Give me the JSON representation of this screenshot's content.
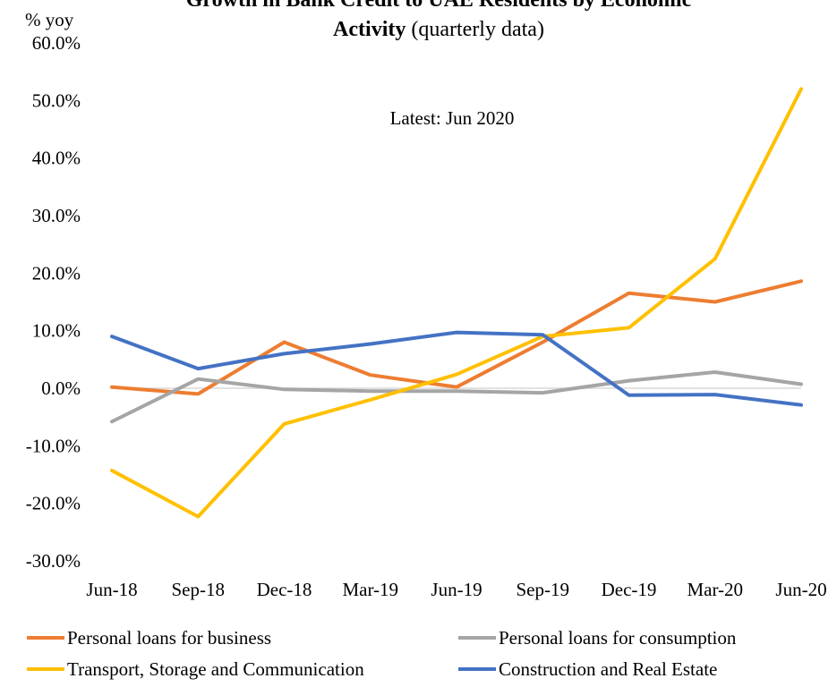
{
  "chart_data": {
    "type": "line",
    "title_line1": "Growth in Bank Credit to UAE Residents by Economic",
    "title_line2_bold": "Activity",
    "title_line2_rest": " (quarterly data)",
    "ylabel": "% yoy",
    "annotation": "Latest: Jun 2020",
    "categories": [
      "Jun-18",
      "Sep-18",
      "Dec-18",
      "Mar-19",
      "Jun-19",
      "Sep-19",
      "Dec-19",
      "Mar-20",
      "Jun-20"
    ],
    "ylim": [
      -30,
      60
    ],
    "yticks": [
      -30,
      -20,
      -10,
      0,
      10,
      20,
      30,
      40,
      50,
      60
    ],
    "ytick_labels": [
      "-30.0%",
      "-20.0%",
      "-10.0%",
      "0.0%",
      "10.0%",
      "20.0%",
      "30.0%",
      "40.0%",
      "50.0%",
      "60.0%"
    ],
    "grid": false,
    "legend_position": "bottom",
    "series": [
      {
        "name": "Personal loans for business",
        "color": "#ED7D31",
        "values": [
          0.2,
          -1.0,
          8.0,
          2.3,
          0.2,
          8.0,
          16.5,
          15.0,
          18.6
        ]
      },
      {
        "name": "Personal loans for consumption",
        "color": "#A5A5A5",
        "values": [
          -5.8,
          1.6,
          -0.2,
          -0.5,
          -0.5,
          -0.8,
          1.3,
          2.8,
          0.7
        ]
      },
      {
        "name": "Transport, Storage and Communication",
        "color": "#FFC000",
        "values": [
          -14.3,
          -22.3,
          -6.2,
          -2.0,
          2.4,
          9.0,
          10.5,
          22.5,
          52.0
        ]
      },
      {
        "name": "Construction and Real Estate",
        "color": "#4472C4",
        "values": [
          9.0,
          3.4,
          6.0,
          7.7,
          9.7,
          9.3,
          -1.2,
          -1.1,
          -2.9
        ]
      }
    ]
  }
}
